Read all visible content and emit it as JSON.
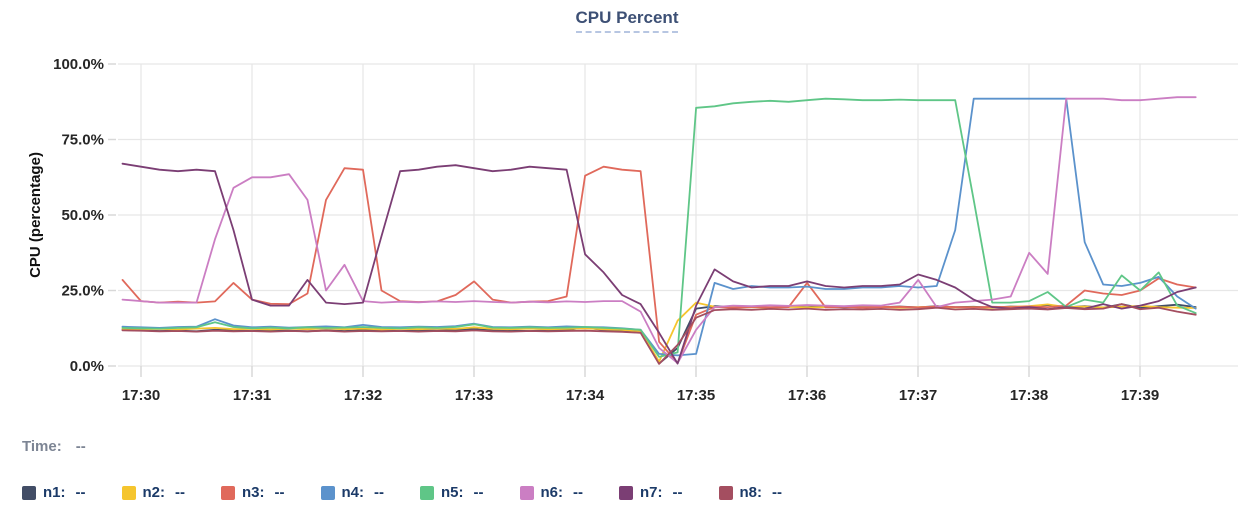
{
  "title": "CPU Percent",
  "time_row": {
    "label": "Time:",
    "value": "--"
  },
  "legend": [
    {
      "name": "n1",
      "value": "--",
      "color": "#424d66"
    },
    {
      "name": "n2",
      "value": "--",
      "color": "#f5c52e"
    },
    {
      "name": "n3",
      "value": "--",
      "color": "#e0695b"
    },
    {
      "name": "n4",
      "value": "--",
      "color": "#5b92cc"
    },
    {
      "name": "n5",
      "value": "--",
      "color": "#5fc687"
    },
    {
      "name": "n6",
      "value": "--",
      "color": "#cb7ec3"
    },
    {
      "name": "n7",
      "value": "--",
      "color": "#7b3e74"
    },
    {
      "name": "n8",
      "value": "--",
      "color": "#a44e60"
    }
  ],
  "colors": {
    "title": "#3d5075",
    "title_underline": "#b7c6e2",
    "axis_text": "#262626",
    "y_axis_title": "#111111",
    "grid": "#e7e7e7",
    "tick": "#d8d8d8",
    "time_label": "#7d8594",
    "legend_text": "#1b3a68"
  },
  "chart_data": {
    "type": "line",
    "title": "CPU Percent",
    "xlabel": "",
    "ylabel": "CPU (percentage)",
    "ylim": [
      0,
      100
    ],
    "grid": true,
    "legend_position": "bottom",
    "y_tick_values": [
      0,
      25,
      50,
      75,
      100
    ],
    "y_tick_labels": [
      "0.0%",
      "25.0%",
      "50.0%",
      "75.0%",
      "100.0%"
    ],
    "x_tick_labels": [
      "17:30",
      "17:31",
      "17:32",
      "17:33",
      "17:34",
      "17:35",
      "17:36",
      "17:37",
      "17:38",
      "17:39"
    ],
    "x_tick_positions_minutes": [
      0,
      1,
      2,
      3,
      4,
      5,
      6,
      7,
      8,
      9
    ],
    "x_start_minutes": -0.1667,
    "x_step_minutes": 0.1667,
    "series": [
      {
        "name": "n1",
        "color": "#424d66",
        "values": [
          12,
          11.8,
          11.6,
          11.7,
          11.5,
          12,
          11.8,
          11.6,
          11.8,
          11.7,
          11.5,
          11.8,
          11.6,
          11.9,
          11.7,
          11.6,
          11.8,
          11.7,
          11.9,
          12.2,
          11.8,
          11.7,
          11.6,
          11.8,
          11.9,
          12.8,
          11.9,
          11.8,
          11.2,
          0.8,
          6,
          19,
          19.8,
          19.5,
          19.6,
          19.4,
          19.7,
          19.5,
          19.8,
          19.4,
          19.6,
          19.5,
          19.7,
          19.4,
          19.8,
          19.5,
          19.6,
          19.3,
          19.7,
          19.5,
          20.2,
          19.4,
          19.8,
          19.3,
          20.5,
          19.2,
          19.8,
          20.3,
          19.5
        ]
      },
      {
        "name": "n2",
        "color": "#f5c52e",
        "values": [
          12.4,
          12.2,
          12.3,
          12.1,
          12.4,
          12.6,
          12.2,
          12.3,
          12.1,
          12.4,
          12.2,
          12.5,
          12.2,
          12.4,
          12.1,
          12.3,
          12.2,
          12.4,
          12.3,
          12.8,
          12.3,
          12.2,
          12.4,
          12.2,
          12.3,
          12.5,
          12.2,
          12,
          11.5,
          1.5,
          15,
          21,
          19.6,
          19.4,
          19.5,
          19.3,
          19.6,
          19.4,
          19.5,
          19.7,
          19.4,
          19.6,
          19.3,
          19.5,
          19.6,
          19.4,
          19.5,
          19.3,
          19.6,
          19.8,
          20.4,
          19.5,
          19.7,
          19.4,
          19.6,
          19.9,
          19.5,
          19.3,
          19.2
        ]
      },
      {
        "name": "n3",
        "color": "#e0695b",
        "values": [
          28.5,
          21.5,
          21,
          21.3,
          21,
          21.4,
          27.5,
          22,
          20.6,
          20.5,
          24,
          55,
          65.5,
          65,
          25,
          21.5,
          21.2,
          21.4,
          23.5,
          28,
          22,
          21,
          21.3,
          21.5,
          23,
          63,
          66,
          65,
          64.5,
          8,
          1,
          17,
          19.5,
          19.3,
          19.6,
          19.4,
          19.5,
          27.5,
          19.4,
          19.6,
          19.3,
          19.5,
          19.6,
          19.4,
          19.7,
          19.5,
          19.4,
          19.6,
          19.5,
          19.7,
          19.5,
          20,
          25,
          24,
          23.5,
          25,
          29,
          27,
          26
        ]
      },
      {
        "name": "n4",
        "color": "#5b92cc",
        "values": [
          13,
          12.8,
          12.6,
          12.9,
          13,
          15.5,
          13.4,
          12.8,
          13,
          12.7,
          12.9,
          13.1,
          12.8,
          13.6,
          12.9,
          12.8,
          13,
          12.9,
          13.2,
          14,
          12.9,
          12.8,
          13,
          12.8,
          13.1,
          12.9,
          12.8,
          12.5,
          12,
          4,
          3.5,
          4,
          27.5,
          25.5,
          26.5,
          26,
          26,
          26.3,
          25.5,
          25.5,
          26,
          26,
          26.5,
          26,
          26.5,
          45,
          88.5,
          88.5,
          88.5,
          88.5,
          88.5,
          88.5,
          41,
          27,
          26.5,
          27.5,
          29.5,
          23,
          19
        ]
      },
      {
        "name": "n5",
        "color": "#5fc687",
        "values": [
          12.6,
          12.5,
          12.4,
          12.6,
          12.8,
          14.5,
          12.9,
          12.5,
          12.7,
          12.5,
          12.8,
          12.6,
          12.7,
          12.9,
          12.6,
          12.5,
          12.8,
          12.6,
          12.9,
          13.8,
          12.7,
          12.6,
          12.8,
          12.6,
          12.7,
          12.9,
          12.6,
          12.4,
          12,
          3,
          4.5,
          85.5,
          86,
          87,
          87.5,
          87.8,
          87.5,
          88,
          88.5,
          88.3,
          88,
          88,
          88.2,
          88,
          88,
          88,
          55,
          21,
          21,
          21.5,
          24.5,
          19.5,
          22,
          21,
          30,
          25,
          31,
          20,
          17.5
        ]
      },
      {
        "name": "n6",
        "color": "#cb7ec3",
        "values": [
          22,
          21.5,
          21,
          21,
          21,
          42,
          59,
          62.5,
          62.5,
          63.5,
          55,
          25,
          33.5,
          21.5,
          21,
          21.3,
          21.1,
          21.4,
          21.2,
          21.5,
          21.2,
          21,
          21.3,
          21.1,
          21.4,
          21.2,
          21.5,
          21.5,
          18,
          6,
          1,
          12,
          19.5,
          20,
          19.8,
          20.1,
          19.9,
          20.2,
          20,
          19.8,
          20.1,
          20,
          21,
          28.5,
          19.5,
          21,
          21.5,
          22,
          23,
          37.5,
          30.5,
          88.5,
          88.5,
          88.5,
          88,
          88,
          88.5,
          89,
          89
        ]
      },
      {
        "name": "n7",
        "color": "#7b3e74",
        "values": [
          67,
          66,
          65,
          64.5,
          65,
          64.5,
          45,
          22,
          20,
          20,
          28.5,
          21,
          20.5,
          21,
          43,
          64.5,
          65,
          66,
          66.5,
          65.5,
          64.5,
          65,
          66,
          65.5,
          65,
          37,
          31,
          23.5,
          20.5,
          11,
          0.8,
          20,
          32,
          28,
          26,
          26.5,
          26.5,
          28,
          26.5,
          26,
          26.5,
          26.5,
          27,
          30.3,
          28.5,
          26,
          22,
          19.5,
          19,
          19.5,
          18.8,
          19.5,
          19,
          20.5,
          19,
          20,
          21.5,
          24.5,
          26
        ]
      },
      {
        "name": "n8",
        "color": "#a44e60",
        "values": [
          11.8,
          11.7,
          11.5,
          11.6,
          11.4,
          11.7,
          11.5,
          11.6,
          11.4,
          11.6,
          11.5,
          11.7,
          11.4,
          11.6,
          11.5,
          11.6,
          11.4,
          11.6,
          11.5,
          11.8,
          11.5,
          11.4,
          11.6,
          11.5,
          11.6,
          11.7,
          11.5,
          11.3,
          11,
          0.7,
          7,
          16,
          18.5,
          18.8,
          18.6,
          18.9,
          18.7,
          19,
          18.6,
          18.8,
          18.7,
          18.9,
          18.6,
          18.8,
          19.3,
          18.7,
          18.9,
          18.6,
          18.8,
          19,
          18.7,
          19.2,
          18.8,
          19,
          20.5,
          18.8,
          19.3,
          18,
          17
        ]
      }
    ]
  }
}
